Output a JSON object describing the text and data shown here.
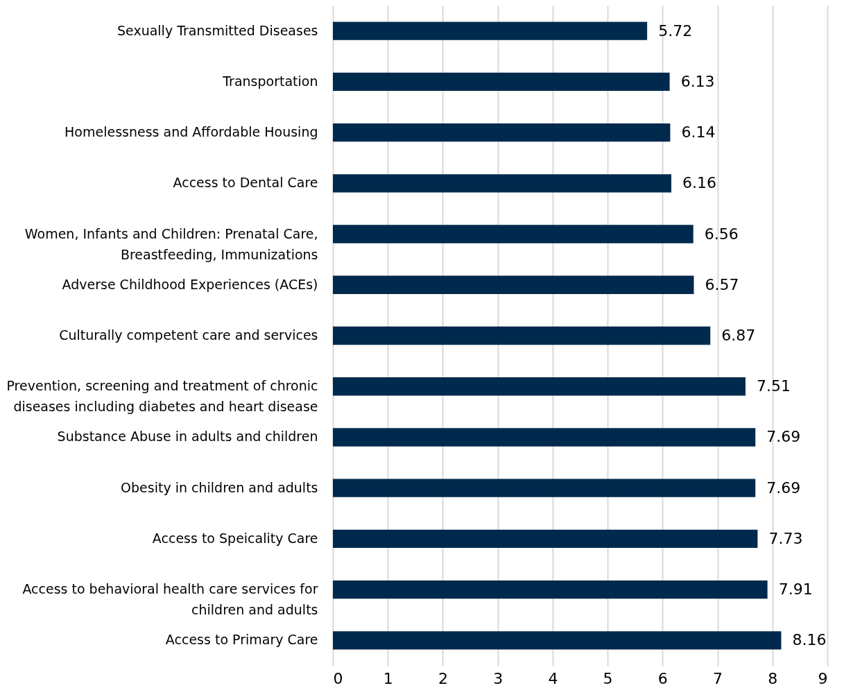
{
  "chart_data": {
    "type": "bar",
    "orientation": "horizontal",
    "categories": [
      "Sexually Transmitted Diseases",
      "Transportation",
      "Homelessness and Affordable Housing",
      "Access to Dental Care",
      "Women, Infants and Children:  Prenatal Care, Breastfeeding, Immunizations",
      "Adverse Childhood Experiences (ACEs)",
      "Culturally competent care and services",
      "Prevention, screening and treatment of chronic diseases including diabetes and heart disease",
      "Substance Abuse in adults and children",
      "Obesity in children and adults",
      "Access to Speicality Care",
      "Access to behavioral health care services for children and adults",
      "Access to Primary Care"
    ],
    "values": [
      5.72,
      6.13,
      6.14,
      6.16,
      6.56,
      6.57,
      6.87,
      7.51,
      7.69,
      7.69,
      7.73,
      7.91,
      8.16
    ],
    "color": "#002a4d",
    "xlim": [
      0,
      9
    ],
    "xticks": [
      0,
      1,
      2,
      3,
      4,
      5,
      6,
      7,
      8,
      9
    ],
    "grid": "x",
    "data_labels": true
  }
}
